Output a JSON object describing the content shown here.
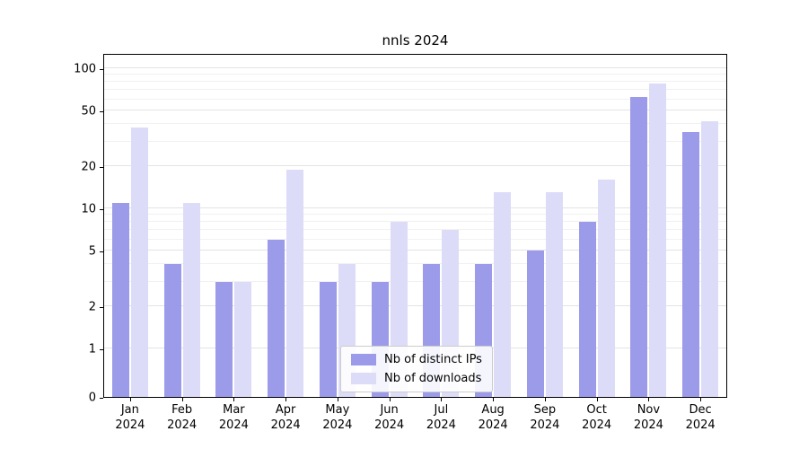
{
  "chart_data": {
    "type": "bar",
    "title": "nnls 2024",
    "x_categories": [
      "Jan 2024",
      "Feb 2024",
      "Mar 2024",
      "Apr 2024",
      "May 2024",
      "Jun 2024",
      "Jul 2024",
      "Aug 2024",
      "Sep 2024",
      "Oct 2024",
      "Nov 2024",
      "Dec 2024"
    ],
    "series": [
      {
        "name": "Nb of distinct IPs",
        "color": "#9b9bea",
        "values": [
          11,
          4,
          3,
          6,
          3,
          3,
          4,
          4,
          5,
          8,
          62,
          35
        ]
      },
      {
        "name": "Nb of downloads",
        "color": "#dcdcf8",
        "values": [
          38,
          11,
          3,
          19,
          4,
          8,
          7,
          13,
          13,
          16,
          78,
          42
        ]
      }
    ],
    "y_scale": "symlog",
    "y_ticks": [
      0,
      1,
      2,
      5,
      10,
      20,
      50,
      100
    ],
    "y_minor_ticks": [
      3,
      4,
      6,
      7,
      8,
      9,
      30,
      40,
      60,
      70,
      80,
      90
    ],
    "ylim": [
      0,
      120
    ],
    "xlabel": "",
    "ylabel": "",
    "grid": true,
    "legend_position": "lower center"
  }
}
